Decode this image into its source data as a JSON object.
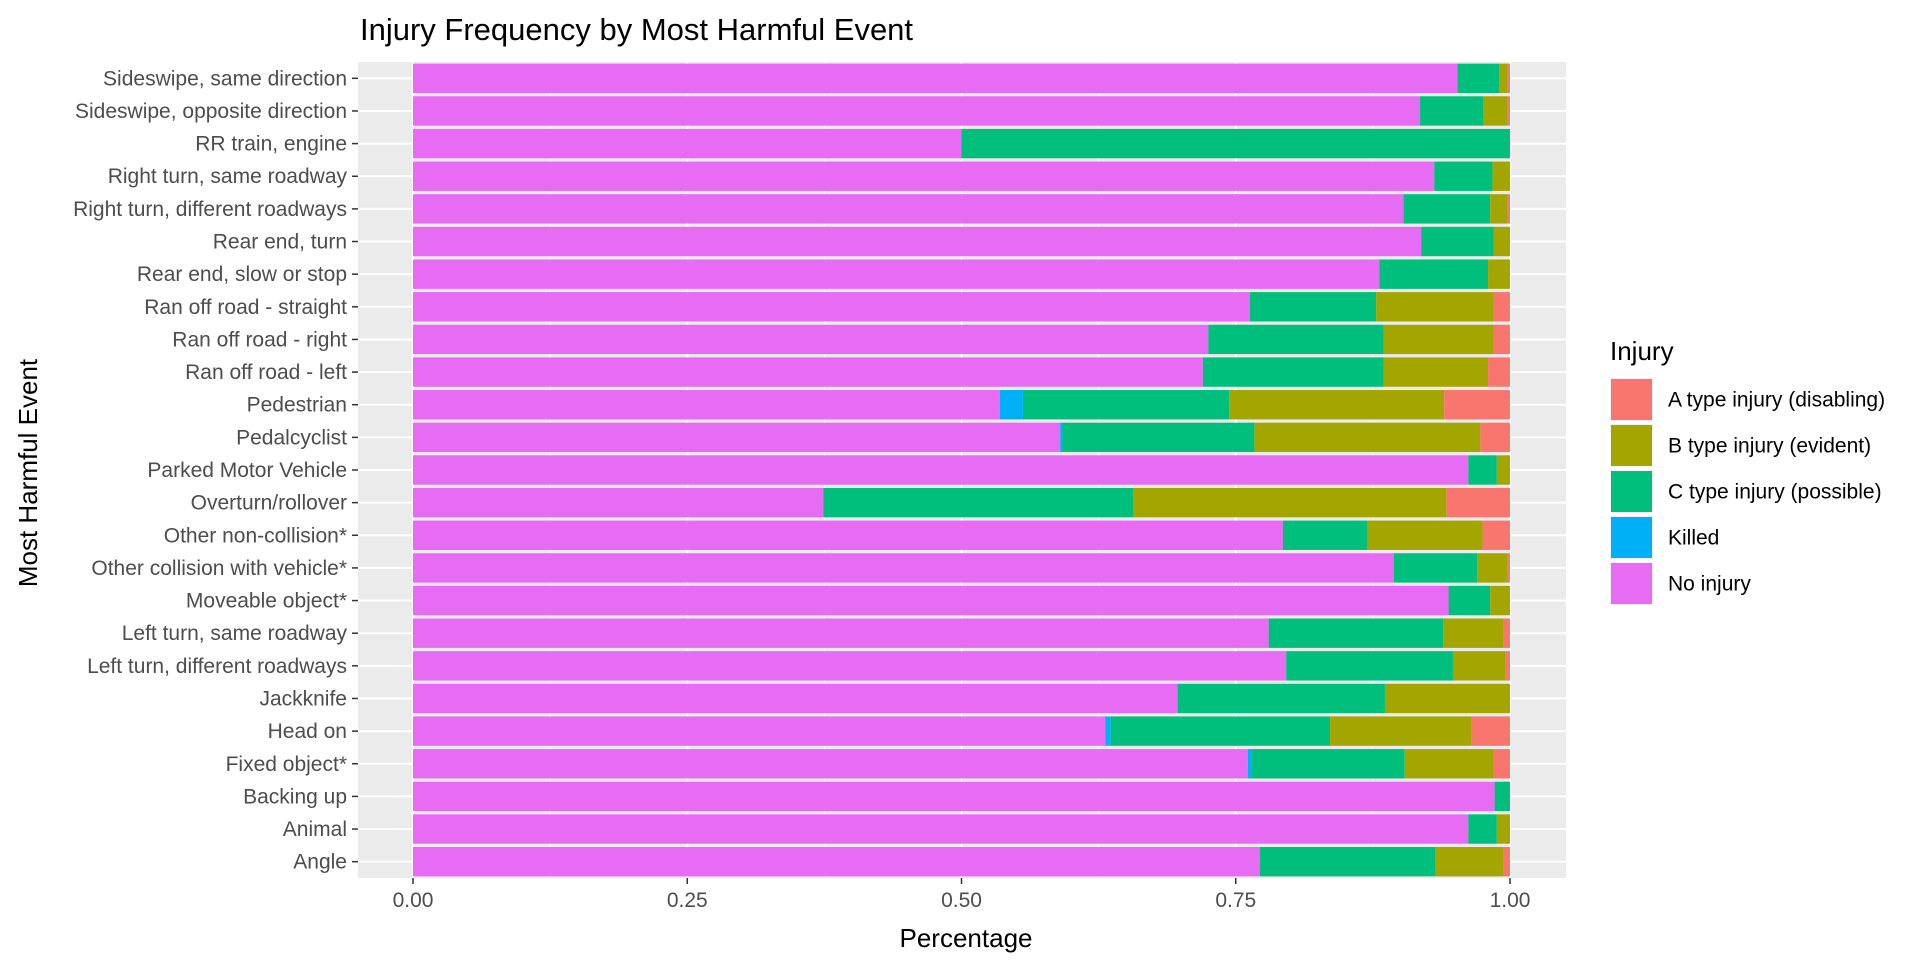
{
  "chart_data": {
    "type": "bar",
    "orientation": "horizontal",
    "stacked": "fill",
    "title": "Injury Frequency by Most Harmful Event",
    "xlabel": "Percentage",
    "ylabel": "Most Harmful Event",
    "xlim": [
      0,
      1
    ],
    "x_ticks": [
      "0.00",
      "0.25",
      "0.50",
      "0.75",
      "1.00"
    ],
    "grid": true,
    "legend": {
      "title": "Injury",
      "position": "right"
    },
    "categories": [
      "Sideswipe, same direction",
      "Sideswipe, opposite direction",
      "RR train, engine",
      "Right turn, same roadway",
      "Right turn, different roadways",
      "Rear end, turn",
      "Rear end, slow or stop",
      "Ran off road - straight",
      "Ran off road - right",
      "Ran off road - left",
      "Pedestrian",
      "Pedalcyclist",
      "Parked Motor Vehicle",
      "Overturn/rollover",
      "Other non-collision*",
      "Other collision with vehicle*",
      "Moveable object*",
      "Left turn, same roadway",
      "Left turn, different roadways",
      "Jackknife",
      "Head on",
      "Fixed object*",
      "Backing up",
      "Animal",
      "Angle"
    ],
    "stack_order": [
      "No injury",
      "Killed",
      "C type injury (possible)",
      "B type injury (evident)",
      "A type injury (disabling)"
    ],
    "series": [
      {
        "name": "A type injury (disabling)",
        "color": "#F8766D",
        "values": [
          0.002,
          0.002,
          0.0,
          0.0,
          0.002,
          0.0,
          0.0,
          0.015,
          0.015,
          0.02,
          0.06,
          0.027,
          0.0,
          0.058,
          0.025,
          0.002,
          0.0,
          0.006,
          0.004,
          0.0,
          0.035,
          0.015,
          0.0,
          0.0,
          0.006
        ]
      },
      {
        "name": "B type injury (evident)",
        "color": "#A3A500",
        "values": [
          0.008,
          0.022,
          0.0,
          0.016,
          0.016,
          0.015,
          0.02,
          0.107,
          0.1,
          0.095,
          0.196,
          0.206,
          0.012,
          0.285,
          0.105,
          0.028,
          0.018,
          0.055,
          0.048,
          0.114,
          0.129,
          0.081,
          0.0,
          0.012,
          0.062
        ]
      },
      {
        "name": "C type injury (possible)",
        "color": "#00BF7D",
        "values": [
          0.038,
          0.058,
          0.5,
          0.053,
          0.079,
          0.066,
          0.099,
          0.115,
          0.16,
          0.165,
          0.188,
          0.175,
          0.026,
          0.283,
          0.077,
          0.076,
          0.038,
          0.159,
          0.152,
          0.189,
          0.2,
          0.14,
          0.014,
          0.026,
          0.16
        ]
      },
      {
        "name": "Killed",
        "color": "#00B0F6",
        "values": [
          0.0,
          0.0,
          0.0,
          0.0,
          0.0,
          0.0,
          0.0,
          0.0,
          0.0,
          0.0,
          0.021,
          0.002,
          0.0,
          0.0,
          0.0,
          0.0,
          0.0,
          0.0,
          0.0,
          0.0,
          0.005,
          0.003,
          0.0,
          0.0,
          0.0
        ]
      },
      {
        "name": "No injury",
        "color": "#E76BF3",
        "values": [
          0.952,
          0.918,
          0.5,
          0.931,
          0.903,
          0.919,
          0.881,
          0.763,
          0.725,
          0.72,
          0.535,
          0.59,
          0.962,
          0.374,
          0.793,
          0.894,
          0.944,
          0.78,
          0.796,
          0.697,
          0.631,
          0.761,
          0.986,
          0.962,
          0.772
        ]
      }
    ]
  }
}
